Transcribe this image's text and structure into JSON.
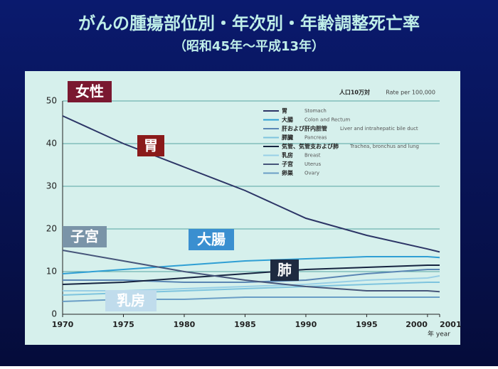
{
  "chart_data": {
    "type": "line",
    "title": "がんの腫瘍部位別・年次別・年齢調整死亡率",
    "subtitle": "（昭和45年～平成13年）",
    "unit_label": "人口10万対",
    "unit_label_en": "Rate per 100,000",
    "x_label": "年 year",
    "annotations": [
      "女性",
      "胃",
      "子宮",
      "大腸",
      "肺",
      "乳房"
    ],
    "x": [
      1970,
      1975,
      1980,
      1985,
      1990,
      1995,
      2000,
      2001
    ],
    "xlim": [
      1970,
      2001
    ],
    "xticks": [
      1970,
      1975,
      1980,
      1985,
      1990,
      1995,
      2000,
      2001
    ],
    "ylim": [
      0,
      50
    ],
    "yticks": [
      0,
      10,
      20,
      30,
      40,
      50
    ],
    "grid": true,
    "series": [
      {
        "name": "胃",
        "name_en": "Stomach",
        "color": "#2c3566",
        "values": [
          46.5,
          40,
          34.5,
          29,
          22.5,
          18.5,
          15.3,
          14.6
        ]
      },
      {
        "name": "大腸",
        "name_en": "Colon and Rectum",
        "color": "#2f9fd4",
        "values": [
          9.5,
          10.5,
          11.5,
          12.5,
          13,
          13.5,
          13.5,
          13.3
        ]
      },
      {
        "name": "肝および肝内胆管",
        "name_en": "Liver and intrahepatic bile duct",
        "color": "#5a86b4",
        "values": [
          8,
          8,
          7.5,
          7.5,
          8,
          9.5,
          10.5,
          10.5
        ]
      },
      {
        "name": "膵臓",
        "name_en": "Pancreas",
        "color": "#7ec4de",
        "values": [
          4.5,
          5,
          5.5,
          6,
          6.5,
          7,
          7.5,
          7.5
        ]
      },
      {
        "name": "気管、気管支および肺",
        "name_en": "Trachea, bronchus and lung",
        "color": "#162440",
        "values": [
          7,
          7.5,
          8.5,
          9.5,
          10.5,
          11,
          11.5,
          11.5
        ]
      },
      {
        "name": "乳房",
        "name_en": "Breast",
        "color": "#98cfe6",
        "values": [
          5.5,
          5.5,
          6,
          6.5,
          7,
          8,
          8.5,
          9
        ]
      },
      {
        "name": "子宮",
        "name_en": "Uterus",
        "color": "#46557a",
        "values": [
          15,
          12.5,
          10,
          8,
          6.5,
          5.5,
          5.5,
          5.3
        ]
      },
      {
        "name": "卵巣",
        "name_en": "Ovary",
        "color": "#6a9ec6",
        "values": [
          3,
          3.5,
          3.5,
          4,
          4,
          4,
          4,
          4
        ]
      }
    ]
  }
}
